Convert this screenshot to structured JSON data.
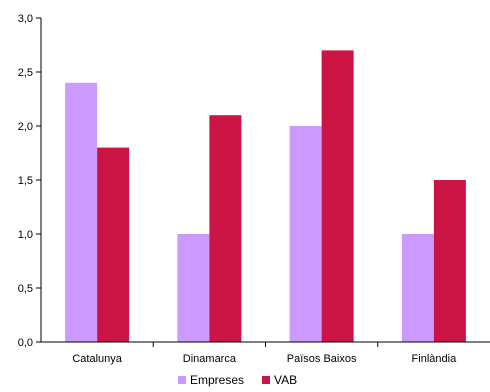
{
  "chart_data": {
    "type": "bar",
    "categories": [
      "Catalunya",
      "Dinamarca",
      "Països Baixos",
      "Finlàndia"
    ],
    "series": [
      {
        "name": "Empreses",
        "values": [
          2.4,
          1.0,
          2.0,
          1.0
        ],
        "color": "#cc99ff"
      },
      {
        "name": "VAB",
        "values": [
          1.8,
          2.1,
          2.7,
          1.5
        ],
        "color": "#cc1444"
      }
    ],
    "y_ticks": [
      "0,0",
      "0,5",
      "1,0",
      "1,5",
      "2,0",
      "2,5",
      "3,0"
    ],
    "ylim": [
      0,
      3
    ],
    "grid": false,
    "legend_position": "bottom"
  }
}
